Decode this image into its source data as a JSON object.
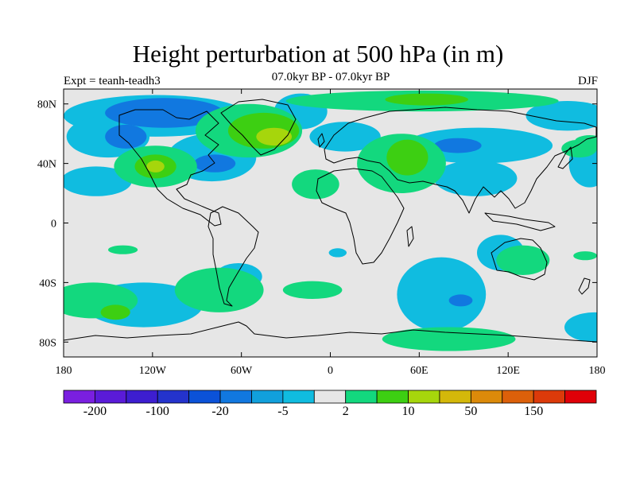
{
  "title": "Height perturbation at 500 hPa (in m)",
  "subtitle": "07.0kyr BP - 07.0kyr BP",
  "expt_label": "Expt = teanh-teadh3",
  "season": "DJF",
  "map": {
    "lon_range": [
      -180,
      180
    ],
    "lat_range": [
      -90,
      90
    ],
    "background_color": "#e6e6e6",
    "lon_ticks": [
      {
        "value": -180,
        "label": "180"
      },
      {
        "value": -120,
        "label": "120W"
      },
      {
        "value": -60,
        "label": "60W"
      },
      {
        "value": 0,
        "label": "0"
      },
      {
        "value": 60,
        "label": "60E"
      },
      {
        "value": 120,
        "label": "120E"
      },
      {
        "value": 180,
        "label": "180"
      }
    ],
    "lat_ticks": [
      {
        "value": 80,
        "label": "80N"
      },
      {
        "value": 40,
        "label": "40N"
      },
      {
        "value": 0,
        "label": "0"
      },
      {
        "value": -40,
        "label": "40S"
      },
      {
        "value": -80,
        "label": "80S"
      }
    ]
  },
  "colorbar": {
    "colors": [
      "#7a1fe0",
      "#5a1bd8",
      "#3d1ed0",
      "#2433cc",
      "#0b52d8",
      "#1178e0",
      "#11a0dc",
      "#10bce0",
      "#e6e6e6",
      "#13d87e",
      "#3dcf12",
      "#a6d60c",
      "#d4b80a",
      "#dc8a0a",
      "#dc600a",
      "#dc3a0a",
      "#e00008"
    ],
    "labels": [
      {
        "boundary": 1,
        "text": "-200"
      },
      {
        "boundary": 3,
        "text": "-100"
      },
      {
        "boundary": 5,
        "text": "-20"
      },
      {
        "boundary": 7,
        "text": "-5"
      },
      {
        "boundary": 9,
        "text": "2"
      },
      {
        "boundary": 11,
        "text": "10"
      },
      {
        "boundary": 13,
        "text": "50"
      },
      {
        "boundary": 15,
        "text": "150"
      }
    ]
  },
  "anomaly_fields": [
    {
      "level": "-5",
      "color": "#10bce0",
      "areas": [
        {
          "lon": -118,
          "lat": 72,
          "rlon": 62,
          "rlat": 14
        },
        {
          "lon": -150,
          "lat": 58,
          "rlon": 28,
          "rlat": 14
        },
        {
          "lon": -80,
          "lat": 44,
          "rlon": 30,
          "rlat": 16
        },
        {
          "lon": -158,
          "lat": 28,
          "rlon": 24,
          "rlat": 10
        },
        {
          "lon": -20,
          "lat": 75,
          "rlon": 18,
          "rlat": 12
        },
        {
          "lon": 10,
          "lat": 58,
          "rlon": 24,
          "rlat": 10
        },
        {
          "lon": 100,
          "lat": 52,
          "rlon": 50,
          "rlat": 12
        },
        {
          "lon": 98,
          "lat": 30,
          "rlon": 28,
          "rlat": 12
        },
        {
          "lon": 160,
          "lat": 72,
          "rlon": 28,
          "rlat": 10
        },
        {
          "lon": 175,
          "lat": 40,
          "rlon": 14,
          "rlat": 16
        },
        {
          "lon": -126,
          "lat": -55,
          "rlon": 40,
          "rlat": 15
        },
        {
          "lon": -62,
          "lat": -36,
          "rlon": 16,
          "rlat": 9
        },
        {
          "lon": 75,
          "lat": -48,
          "rlon": 30,
          "rlat": 25
        },
        {
          "lon": 115,
          "lat": -20,
          "rlon": 16,
          "rlat": 12
        },
        {
          "lon": 5,
          "lat": -20,
          "rlon": 6,
          "rlat": 3
        },
        {
          "lon": 178,
          "lat": -70,
          "rlon": 20,
          "rlat": 10
        }
      ]
    },
    {
      "level": "-20",
      "color": "#1178e0",
      "areas": [
        {
          "lon": -112,
          "lat": 74,
          "rlon": 40,
          "rlat": 10
        },
        {
          "lon": -138,
          "lat": 58,
          "rlon": 14,
          "rlat": 8
        },
        {
          "lon": -78,
          "lat": 40,
          "rlon": 14,
          "rlat": 6
        },
        {
          "lon": 86,
          "lat": 52,
          "rlon": 16,
          "rlat": 5
        },
        {
          "lon": 88,
          "lat": -52,
          "rlon": 8,
          "rlat": 4
        }
      ]
    },
    {
      "level": "2",
      "color": "#13d87e",
      "areas": [
        {
          "lon": 62,
          "lat": 82,
          "rlon": 92,
          "rlat": 7
        },
        {
          "lon": -55,
          "lat": 62,
          "rlon": 36,
          "rlat": 18
        },
        {
          "lon": -118,
          "lat": 38,
          "rlon": 28,
          "rlat": 14
        },
        {
          "lon": 48,
          "lat": 40,
          "rlon": 30,
          "rlat": 20
        },
        {
          "lon": -10,
          "lat": 26,
          "rlon": 16,
          "rlat": 10
        },
        {
          "lon": 168,
          "lat": 50,
          "rlon": 12,
          "rlat": 6
        },
        {
          "lon": -160,
          "lat": -52,
          "rlon": 30,
          "rlat": 12
        },
        {
          "lon": -75,
          "lat": -45,
          "rlon": 30,
          "rlat": 15
        },
        {
          "lon": -12,
          "lat": -45,
          "rlon": 20,
          "rlat": 6
        },
        {
          "lon": 80,
          "lat": -78,
          "rlon": 45,
          "rlat": 8
        },
        {
          "lon": 130,
          "lat": -25,
          "rlon": 18,
          "rlat": 10
        },
        {
          "lon": -140,
          "lat": -18,
          "rlon": 10,
          "rlat": 3
        },
        {
          "lon": 172,
          "lat": -22,
          "rlon": 8,
          "rlat": 3
        },
        {
          "lon": 175,
          "lat": 55,
          "rlon": 10,
          "rlat": 4
        }
      ]
    },
    {
      "level": "10",
      "color": "#3dcf12",
      "areas": [
        {
          "lon": 65,
          "lat": 83,
          "rlon": 28,
          "rlat": 4
        },
        {
          "lon": -45,
          "lat": 62,
          "rlon": 24,
          "rlat": 12
        },
        {
          "lon": -118,
          "lat": 38,
          "rlon": 14,
          "rlat": 8
        },
        {
          "lon": 52,
          "lat": 44,
          "rlon": 14,
          "rlat": 12
        },
        {
          "lon": -145,
          "lat": -60,
          "rlon": 10,
          "rlat": 5
        }
      ]
    },
    {
      "level": "50",
      "color": "#a6d60c",
      "areas": [
        {
          "lon": -38,
          "lat": 58,
          "rlon": 12,
          "rlat": 6
        },
        {
          "lon": -118,
          "lat": 38,
          "rlon": 6,
          "rlat": 4
        }
      ]
    }
  ]
}
